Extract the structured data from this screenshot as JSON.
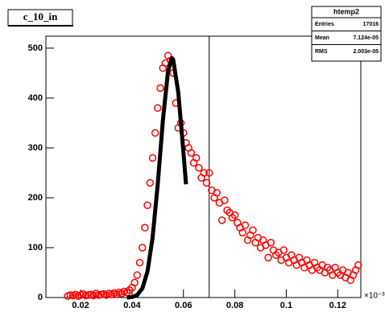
{
  "chart_data": {
    "type": "scatter",
    "title": "c_10_in",
    "stats": {
      "name": "htemp2",
      "rows": [
        [
          "Entries",
          "17016"
        ],
        [
          "Mean",
          "7.124e-05"
        ],
        [
          "RMS",
          "2.003e-05"
        ]
      ]
    },
    "x_exponent": "×10⁻³",
    "points": {
      "color": "#ff0000",
      "x": [
        0.015,
        0.016,
        0.017,
        0.018,
        0.019,
        0.02,
        0.021,
        0.022,
        0.023,
        0.024,
        0.025,
        0.026,
        0.027,
        0.028,
        0.029,
        0.03,
        0.031,
        0.032,
        0.033,
        0.034,
        0.035,
        0.036,
        0.037,
        0.038,
        0.039,
        0.04,
        0.041,
        0.042,
        0.043,
        0.044,
        0.045,
        0.046,
        0.047,
        0.048,
        0.049,
        0.05,
        0.051,
        0.052,
        0.053,
        0.054,
        0.055,
        0.056,
        0.057,
        0.058,
        0.059,
        0.06,
        0.061,
        0.062,
        0.063,
        0.064,
        0.065,
        0.066,
        0.067,
        0.068,
        0.069,
        0.07,
        0.071,
        0.072,
        0.073,
        0.074,
        0.075,
        0.076,
        0.077,
        0.078,
        0.079,
        0.08,
        0.081,
        0.082,
        0.083,
        0.084,
        0.085,
        0.086,
        0.087,
        0.088,
        0.089,
        0.09,
        0.091,
        0.092,
        0.093,
        0.094,
        0.095,
        0.096,
        0.097,
        0.098,
        0.099,
        0.1,
        0.101,
        0.102,
        0.103,
        0.104,
        0.105,
        0.106,
        0.107,
        0.108,
        0.109,
        0.11,
        0.111,
        0.112,
        0.113,
        0.114,
        0.115,
        0.116,
        0.117,
        0.118,
        0.119,
        0.12,
        0.121,
        0.122,
        0.123,
        0.124,
        0.125,
        0.126,
        0.127,
        0.128
      ],
      "values": [
        3,
        5,
        4,
        6,
        3,
        5,
        7,
        4,
        5,
        6,
        4,
        8,
        5,
        6,
        7,
        5,
        8,
        6,
        9,
        7,
        10,
        8,
        12,
        10,
        15,
        20,
        30,
        45,
        70,
        100,
        140,
        185,
        230,
        280,
        330,
        380,
        420,
        460,
        470,
        485,
        475,
        450,
        390,
        340,
        350,
        330,
        310,
        300,
        290,
        270,
        280,
        260,
        240,
        250,
        230,
        250,
        215,
        200,
        210,
        190,
        155,
        195,
        175,
        170,
        160,
        165,
        150,
        140,
        130,
        145,
        115,
        125,
        135,
        110,
        120,
        100,
        115,
        105,
        80,
        110,
        95,
        85,
        90,
        75,
        95,
        80,
        70,
        85,
        75,
        65,
        80,
        70,
        60,
        75,
        65,
        55,
        70,
        60,
        55,
        65,
        50,
        60,
        55,
        45,
        60,
        50,
        45,
        55,
        40,
        50,
        35,
        45,
        55,
        65
      ]
    },
    "fit": {
      "color": "#000000",
      "x": [
        0.038,
        0.04,
        0.042,
        0.044,
        0.046,
        0.048,
        0.05,
        0.052,
        0.054,
        0.0555,
        0.056,
        0.058,
        0.06,
        0.061
      ],
      "values": [
        0,
        1,
        5,
        18,
        52,
        120,
        227,
        355,
        454,
        480,
        477,
        411,
        291,
        227
      ]
    },
    "vline": 0.07,
    "xlim": [
      0.0065,
      0.129
    ],
    "ylim": [
      0,
      524
    ],
    "xticks": [
      0.02,
      0.04,
      0.06,
      0.08,
      0.1,
      0.12
    ],
    "yticks": [
      0,
      100,
      200,
      300,
      400,
      500
    ]
  }
}
